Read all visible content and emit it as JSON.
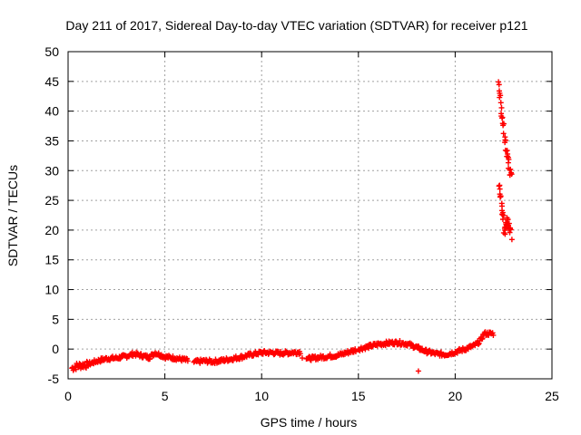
{
  "chart_data": {
    "type": "scatter",
    "title": "Day 211 of 2017, Sidereal Day-to-day VTEC variation (SDTVAR) for receiver p121",
    "xlabel": "GPS time / hours",
    "ylabel": "SDTVAR / TECUs",
    "xlim": [
      0,
      25
    ],
    "ylim": [
      -5,
      50
    ],
    "xticks": [
      "0",
      "5",
      "10",
      "15",
      "20",
      "25"
    ],
    "yticks": [
      "-5",
      "0",
      "5",
      "10",
      "15",
      "20",
      "25",
      "30",
      "35",
      "40",
      "45",
      "50"
    ],
    "grid": true,
    "marker": "plus",
    "series_color": "#ff0000",
    "trend": [
      [
        0.2,
        -3.2
      ],
      [
        0.5,
        -2.8
      ],
      [
        1.0,
        -2.6
      ],
      [
        1.5,
        -2.0
      ],
      [
        2.0,
        -1.6
      ],
      [
        2.5,
        -1.5
      ],
      [
        3.0,
        -1.2
      ],
      [
        3.4,
        -0.8
      ],
      [
        3.8,
        -1.1
      ],
      [
        4.2,
        -1.4
      ],
      [
        4.5,
        -0.6
      ],
      [
        5.0,
        -1.3
      ],
      [
        5.5,
        -1.5
      ],
      [
        6.0,
        -1.8
      ],
      [
        6.5,
        -2.2
      ],
      [
        7.0,
        -2.0
      ],
      [
        7.5,
        -2.1
      ],
      [
        8.0,
        -1.9
      ],
      [
        8.5,
        -1.6
      ],
      [
        9.0,
        -1.3
      ],
      [
        9.5,
        -0.9
      ],
      [
        10.0,
        -0.6
      ],
      [
        10.5,
        -0.6
      ],
      [
        11.0,
        -0.7
      ],
      [
        11.5,
        -0.6
      ],
      [
        12.0,
        -0.5
      ],
      [
        12.4,
        -1.6
      ],
      [
        13.0,
        -1.4
      ],
      [
        13.5,
        -1.2
      ],
      [
        14.0,
        -1.0
      ],
      [
        14.5,
        -0.5
      ],
      [
        15.0,
        0.0
      ],
      [
        15.5,
        0.4
      ],
      [
        16.0,
        0.8
      ],
      [
        16.5,
        1.0
      ],
      [
        17.0,
        1.1
      ],
      [
        17.5,
        0.9
      ],
      [
        18.0,
        0.3
      ],
      [
        18.5,
        -0.4
      ],
      [
        19.0,
        -0.8
      ],
      [
        19.5,
        -0.9
      ],
      [
        20.0,
        -0.5
      ],
      [
        20.5,
        0.0
      ],
      [
        21.0,
        0.6
      ],
      [
        21.3,
        1.4
      ],
      [
        21.5,
        2.6
      ],
      [
        22.0,
        2.6
      ]
    ],
    "spike_high": [
      [
        22.25,
        45
      ],
      [
        22.4,
        40
      ],
      [
        22.55,
        36
      ],
      [
        22.7,
        32
      ],
      [
        22.9,
        29
      ]
    ],
    "spike_low": [
      [
        22.25,
        28
      ],
      [
        22.4,
        24
      ],
      [
        22.55,
        20
      ],
      [
        22.7,
        22
      ],
      [
        22.9,
        19
      ]
    ],
    "outliers": [
      [
        18.1,
        -3.7
      ],
      [
        11.8,
        -0.9
      ],
      [
        12.1,
        -1.5
      ]
    ]
  }
}
